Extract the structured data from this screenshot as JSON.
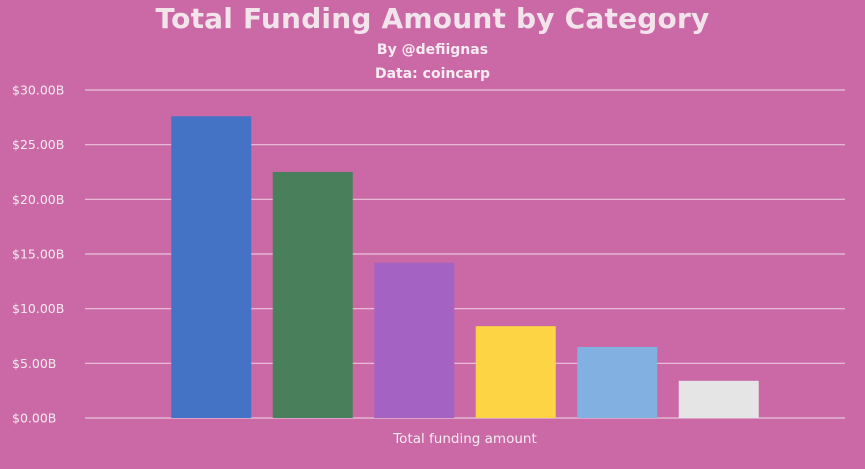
{
  "chart_data": {
    "type": "bar",
    "title": "Total Funding Amount by Category",
    "subtitle_lines": [
      "By @defiignas",
      "Data: coincarp"
    ],
    "xlabel": "Total funding amount",
    "ylabel": "",
    "ylim": [
      0,
      30
    ],
    "yticks": [
      0,
      5,
      10,
      15,
      20,
      25,
      30
    ],
    "ytick_labels": [
      "$0.00B",
      "$5.00B",
      "$10.00B",
      "$15.00B",
      "$20.00B",
      "$25.00B",
      "$30.00B"
    ],
    "categories": [
      "Total funding amount"
    ],
    "series": [
      {
        "values": [
          27.6
        ],
        "color": "#4472c4"
      },
      {
        "values": [
          22.5
        ],
        "color": "#4a7f5b"
      },
      {
        "values": [
          14.2
        ],
        "color": "#a463c2"
      },
      {
        "values": [
          8.4
        ],
        "color": "#fdd444"
      },
      {
        "values": [
          6.5
        ],
        "color": "#81b0e1"
      },
      {
        "values": [
          3.4
        ],
        "color": "#e5e5e5"
      }
    ],
    "grid": true,
    "legend_position": "bottom"
  },
  "colors": {
    "background": "#ca69a6",
    "gridline": "#e8c6da",
    "text": "#f6ecf1"
  }
}
